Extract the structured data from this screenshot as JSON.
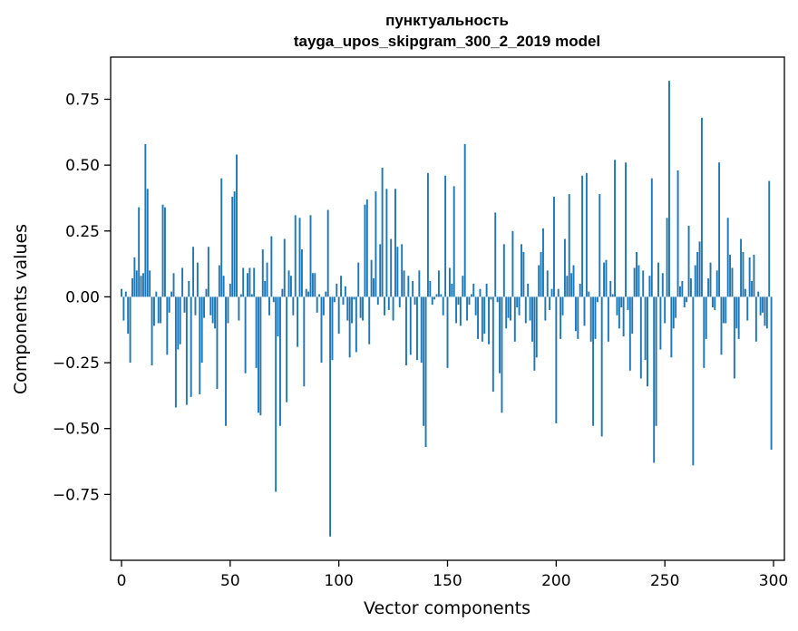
{
  "chart_data": {
    "type": "bar",
    "title": "пунктуальность",
    "subtitle": "tayga_upos_skipgram_300_2_2019 model",
    "xlabel": "Vector components",
    "ylabel": "Components values",
    "xlim": [
      -5,
      305
    ],
    "ylim": [
      -1.0,
      0.91
    ],
    "xticks": [
      0,
      50,
      100,
      150,
      200,
      250,
      300
    ],
    "xtick_labels": [
      "0",
      "50",
      "100",
      "150",
      "200",
      "250",
      "300"
    ],
    "yticks": [
      -0.75,
      -0.5,
      -0.25,
      0.0,
      0.25,
      0.5,
      0.75
    ],
    "ytick_labels": [
      "−0.75",
      "−0.50",
      "−0.25",
      "0.00",
      "0.25",
      "0.50",
      "0.75"
    ],
    "grid": false,
    "bar_color": "#1f77b4",
    "x_start": 0,
    "values": [
      0.03,
      -0.09,
      0.02,
      -0.14,
      -0.25,
      0.07,
      0.15,
      0.1,
      0.34,
      0.08,
      0.09,
      0.58,
      0.41,
      0.1,
      -0.26,
      -0.11,
      0.02,
      -0.1,
      -0.1,
      0.35,
      0.34,
      -0.22,
      -0.06,
      0.02,
      0.09,
      -0.42,
      -0.2,
      -0.18,
      0.11,
      -0.06,
      -0.41,
      0.06,
      -0.38,
      0.19,
      -0.07,
      0.13,
      -0.37,
      -0.25,
      -0.08,
      0.03,
      0.19,
      -0.07,
      -0.1,
      -0.12,
      -0.35,
      0.12,
      0.45,
      0.08,
      -0.49,
      -0.1,
      0.05,
      0.38,
      0.4,
      0.54,
      -0.09,
      0.01,
      0.11,
      -0.29,
      0.09,
      0.11,
      0.01,
      0.11,
      -0.27,
      -0.44,
      -0.45,
      0.18,
      0.06,
      0.13,
      -0.07,
      0.23,
      -0.02,
      -0.74,
      -0.15,
      -0.49,
      0.03,
      0.22,
      -0.4,
      0.1,
      0.08,
      -0.07,
      0.31,
      -0.19,
      0.3,
      0.18,
      -0.34,
      0.03,
      0.02,
      0.31,
      0.09,
      0.09,
      -0.06,
      0.01,
      -0.25,
      -0.07,
      0.02,
      0.33,
      -0.91,
      -0.24,
      -0.02,
      0.05,
      -0.14,
      0.08,
      -0.03,
      0.04,
      -0.09,
      -0.23,
      -0.1,
      -0.01,
      -0.21,
      0.13,
      -0.08,
      -0.09,
      0.35,
      0.37,
      -0.18,
      0.14,
      0.07,
      0.4,
      -0.03,
      0.2,
      0.49,
      -0.07,
      0.41,
      -0.05,
      0.22,
      -0.09,
      0.41,
      0.19,
      -0.04,
      0.2,
      0.1,
      -0.26,
      0.08,
      -0.22,
      0.06,
      -0.03,
      -0.24,
      0.1,
      -0.25,
      -0.49,
      -0.57,
      0.47,
      0.06,
      -0.03,
      -0.01,
      0.01,
      0.1,
      0.01,
      -0.07,
      0.46,
      -0.27,
      0.11,
      0.05,
      0.42,
      -0.1,
      -0.03,
      -0.11,
      0.08,
      0.58,
      -0.09,
      -0.03,
      0.01,
      0.05,
      -0.07,
      -0.16,
      0.03,
      -0.17,
      -0.14,
      0.05,
      -0.18,
      -0.01,
      -0.36,
      0.32,
      -0.02,
      -0.29,
      -0.44,
      0.2,
      -0.12,
      -0.08,
      -0.09,
      0.25,
      -0.17,
      -0.04,
      -0.07,
      0.2,
      0.17,
      -0.1,
      0.05,
      -0.09,
      -0.17,
      -0.28,
      -0.23,
      0.12,
      0.17,
      0.26,
      -0.09,
      0.1,
      -0.05,
      0.03,
      0.38,
      -0.48,
      0.03,
      -0.16,
      -0.07,
      0.22,
      0.08,
      0.39,
      0.09,
      0.12,
      -0.13,
      -0.16,
      0.05,
      0.46,
      -0.11,
      0.47,
      0.02,
      -0.17,
      -0.49,
      -0.16,
      -0.02,
      0.39,
      -0.53,
      0.13,
      0.14,
      -0.17,
      0.06,
      0.01,
      0.52,
      -0.07,
      -0.12,
      -0.04,
      -0.15,
      0.51,
      -0.05,
      -0.28,
      -0.14,
      0.11,
      0.17,
      0.12,
      -0.31,
      0.1,
      -0.24,
      -0.34,
      0.08,
      0.45,
      -0.63,
      -0.49,
      0.13,
      -0.2,
      0.09,
      -0.1,
      0.3,
      0.82,
      -0.23,
      -0.12,
      -0.08,
      0.48,
      0.04,
      0.06,
      -0.04,
      -0.02,
      0.27,
      0.07,
      -0.64,
      0.12,
      0.17,
      0.21,
      0.68,
      -0.27,
      -0.16,
      0.07,
      0.13,
      -0.04,
      -0.05,
      0.1,
      0.51,
      -0.22,
      -0.1,
      -0.1,
      0.3,
      0.16,
      0.11,
      -0.31,
      -0.12,
      -0.16,
      0.22,
      0.17,
      0.03,
      -0.09,
      0.15,
      0.06,
      0.16,
      -0.17,
      0.02,
      -0.07,
      -0.06,
      -0.11,
      -0.12,
      0.44,
      -0.58
    ]
  }
}
